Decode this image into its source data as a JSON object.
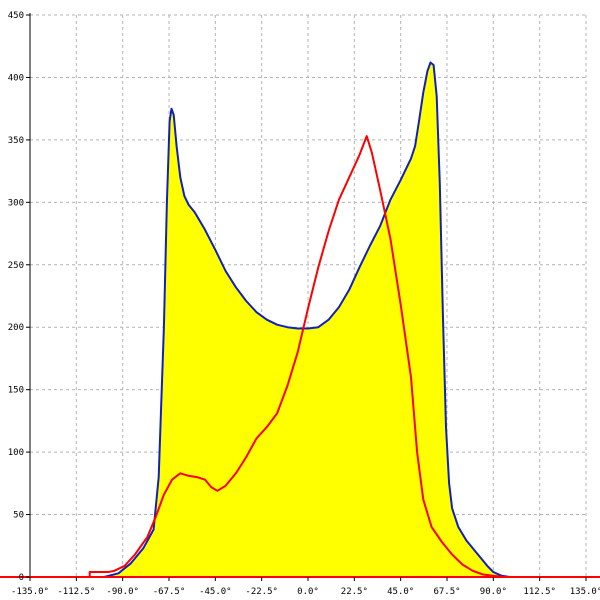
{
  "chart_data": {
    "type": "area",
    "title": "",
    "xlabel": "",
    "ylabel": "",
    "xlim": [
      -135,
      135
    ],
    "ylim": [
      0,
      450
    ],
    "grid": true,
    "legend": "none",
    "x_ticks": [
      {
        "value": -135,
        "label": "-135.0°"
      },
      {
        "value": -112.5,
        "label": "-112.5°"
      },
      {
        "value": -90,
        "label": "-90.0°"
      },
      {
        "value": -67.5,
        "label": "-67.5°"
      },
      {
        "value": -45,
        "label": "-45.0°"
      },
      {
        "value": -22.5,
        "label": "-22.5°"
      },
      {
        "value": 0,
        "label": "0.0°"
      },
      {
        "value": 22.5,
        "label": "22.5°"
      },
      {
        "value": 45,
        "label": "45.0°"
      },
      {
        "value": 67.5,
        "label": "67.5°"
      },
      {
        "value": 90,
        "label": "90.0°"
      },
      {
        "value": 112.5,
        "label": "112.5°"
      },
      {
        "value": 135,
        "label": "135.0°"
      }
    ],
    "y_ticks": [
      {
        "value": 0,
        "label": "0"
      },
      {
        "value": 50,
        "label": "50"
      },
      {
        "value": 100,
        "label": "100"
      },
      {
        "value": 150,
        "label": "150"
      },
      {
        "value": 200,
        "label": "200"
      },
      {
        "value": 250,
        "label": "250"
      },
      {
        "value": 300,
        "label": "300"
      },
      {
        "value": 350,
        "label": "350"
      },
      {
        "value": 400,
        "label": "400"
      },
      {
        "value": 450,
        "label": "450"
      }
    ],
    "series": [
      {
        "color": "#1020c0",
        "fill": "#ffff00",
        "points": [
          [
            -135,
            0
          ],
          [
            -99,
            0
          ],
          [
            -92,
            3
          ],
          [
            -86,
            11
          ],
          [
            -80,
            23
          ],
          [
            -75,
            38
          ],
          [
            -72.5,
            80
          ],
          [
            -70,
            200
          ],
          [
            -68.5,
            300
          ],
          [
            -67.2,
            365
          ],
          [
            -66.3,
            375
          ],
          [
            -65.2,
            370
          ],
          [
            -63.8,
            345
          ],
          [
            -62,
            320
          ],
          [
            -60,
            305
          ],
          [
            -58,
            298
          ],
          [
            -55,
            292
          ],
          [
            -50,
            278
          ],
          [
            -45,
            262
          ],
          [
            -40,
            245
          ],
          [
            -35,
            232
          ],
          [
            -30,
            221
          ],
          [
            -25,
            212
          ],
          [
            -20,
            206
          ],
          [
            -15,
            202
          ],
          [
            -10,
            200
          ],
          [
            -5,
            199
          ],
          [
            0,
            199
          ],
          [
            5,
            200
          ],
          [
            10,
            206
          ],
          [
            15,
            216
          ],
          [
            20,
            230
          ],
          [
            25,
            248
          ],
          [
            30,
            265
          ],
          [
            35,
            281
          ],
          [
            40,
            302
          ],
          [
            45,
            318
          ],
          [
            50,
            335
          ],
          [
            52,
            345
          ],
          [
            54,
            366
          ],
          [
            56,
            388
          ],
          [
            58,
            405
          ],
          [
            59.5,
            412
          ],
          [
            61,
            410
          ],
          [
            62.5,
            385
          ],
          [
            64,
            315
          ],
          [
            65.5,
            210
          ],
          [
            67,
            120
          ],
          [
            68.5,
            75
          ],
          [
            70,
            55
          ],
          [
            73,
            40
          ],
          [
            77,
            29
          ],
          [
            82,
            19
          ],
          [
            87,
            9
          ],
          [
            90,
            4
          ],
          [
            94,
            1
          ],
          [
            98,
            0
          ],
          [
            135,
            0
          ]
        ]
      },
      {
        "color": "#ff0000",
        "fill": "none",
        "points": [
          [
            -135,
            0
          ],
          [
            -106,
            0
          ],
          [
            -106,
            4
          ],
          [
            -97,
            4
          ],
          [
            -94,
            5
          ],
          [
            -89,
            9
          ],
          [
            -84,
            18
          ],
          [
            -78,
            32
          ],
          [
            -74,
            48
          ],
          [
            -70,
            66
          ],
          [
            -66,
            78
          ],
          [
            -62,
            83
          ],
          [
            -58,
            81
          ],
          [
            -54,
            80
          ],
          [
            -50,
            78
          ],
          [
            -47,
            72
          ],
          [
            -44,
            69
          ],
          [
            -40,
            73
          ],
          [
            -35,
            83
          ],
          [
            -30,
            96
          ],
          [
            -25,
            111
          ],
          [
            -20,
            120
          ],
          [
            -15,
            131
          ],
          [
            -10,
            153
          ],
          [
            -5,
            180
          ],
          [
            0,
            215
          ],
          [
            5,
            248
          ],
          [
            10,
            277
          ],
          [
            15,
            302
          ],
          [
            20,
            320
          ],
          [
            25,
            338
          ],
          [
            28.5,
            353
          ],
          [
            31,
            340
          ],
          [
            35,
            310
          ],
          [
            40,
            271
          ],
          [
            45,
            218
          ],
          [
            50,
            160
          ],
          [
            53,
            100
          ],
          [
            56,
            62
          ],
          [
            60,
            40
          ],
          [
            65,
            28
          ],
          [
            70,
            18
          ],
          [
            75,
            10
          ],
          [
            80,
            5
          ],
          [
            85,
            2
          ],
          [
            90,
            1
          ],
          [
            95,
            0
          ],
          [
            135,
            0
          ]
        ]
      }
    ]
  }
}
